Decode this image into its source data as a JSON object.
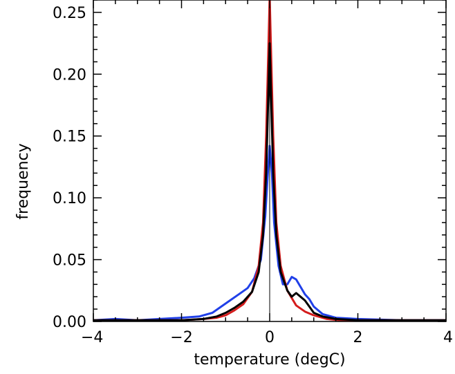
{
  "chart_data": {
    "type": "line",
    "title": "",
    "xlabel": "temperature (degC)",
    "ylabel": "frequency",
    "xlim": [
      -4,
      4
    ],
    "ylim": [
      0,
      0.26
    ],
    "xticks": [
      -4,
      -2,
      0,
      2,
      4
    ],
    "xtick_labels": [
      "−4",
      "−2",
      "0",
      "2",
      "4"
    ],
    "yticks": [
      0,
      0.05,
      0.1,
      0.15,
      0.2,
      0.25
    ],
    "ytick_labels": [
      "0.00",
      "0.05",
      "0.10",
      "0.15",
      "0.20",
      "0.25"
    ],
    "grid": false,
    "legend": "none",
    "reference_line": {
      "x": 0,
      "color": "#000000"
    },
    "series": [
      {
        "color": "#2040e8",
        "x": [
          -4,
          -3.5,
          -3,
          -2.5,
          -2,
          -1.6,
          -1.3,
          -1.1,
          -0.9,
          -0.7,
          -0.5,
          -0.35,
          -0.2,
          -0.1,
          -0.05,
          0,
          0.05,
          0.1,
          0.2,
          0.3,
          0.4,
          0.5,
          0.6,
          0.7,
          0.8,
          0.9,
          1.0,
          1.2,
          1.5,
          2,
          3,
          4
        ],
        "y": [
          0.001,
          0.002,
          0.001,
          0.002,
          0.003,
          0.004,
          0.007,
          0.012,
          0.017,
          0.022,
          0.027,
          0.035,
          0.05,
          0.085,
          0.115,
          0.142,
          0.12,
          0.08,
          0.045,
          0.03,
          0.03,
          0.036,
          0.034,
          0.028,
          0.022,
          0.018,
          0.012,
          0.006,
          0.003,
          0.002,
          0.001,
          0.001
        ]
      },
      {
        "color": "#d41c1c",
        "x": [
          -4,
          -3,
          -2,
          -1.5,
          -1.2,
          -1.0,
          -0.8,
          -0.6,
          -0.4,
          -0.25,
          -0.15,
          -0.08,
          -0.03,
          0,
          0.03,
          0.08,
          0.15,
          0.25,
          0.4,
          0.6,
          0.8,
          1.0,
          1.3,
          1.6,
          2,
          3,
          4
        ],
        "y": [
          0.001,
          0.001,
          0.001,
          0.002,
          0.003,
          0.005,
          0.009,
          0.014,
          0.024,
          0.045,
          0.08,
          0.15,
          0.22,
          0.263,
          0.22,
          0.15,
          0.08,
          0.045,
          0.025,
          0.013,
          0.008,
          0.005,
          0.002,
          0.001,
          0.001,
          0.001,
          0.001
        ]
      },
      {
        "color": "#000000",
        "x": [
          -4,
          -3,
          -2,
          -1.5,
          -1.2,
          -1.0,
          -0.8,
          -0.6,
          -0.4,
          -0.25,
          -0.15,
          -0.08,
          -0.03,
          0,
          0.03,
          0.08,
          0.15,
          0.25,
          0.4,
          0.5,
          0.6,
          0.7,
          0.8,
          0.9,
          1.0,
          1.2,
          1.5,
          2,
          3,
          4
        ],
        "y": [
          0.001,
          0.001,
          0.001,
          0.002,
          0.004,
          0.007,
          0.011,
          0.016,
          0.024,
          0.04,
          0.07,
          0.12,
          0.185,
          0.225,
          0.185,
          0.12,
          0.07,
          0.04,
          0.025,
          0.02,
          0.023,
          0.02,
          0.017,
          0.012,
          0.007,
          0.004,
          0.002,
          0.001,
          0.001,
          0.001
        ]
      }
    ]
  }
}
